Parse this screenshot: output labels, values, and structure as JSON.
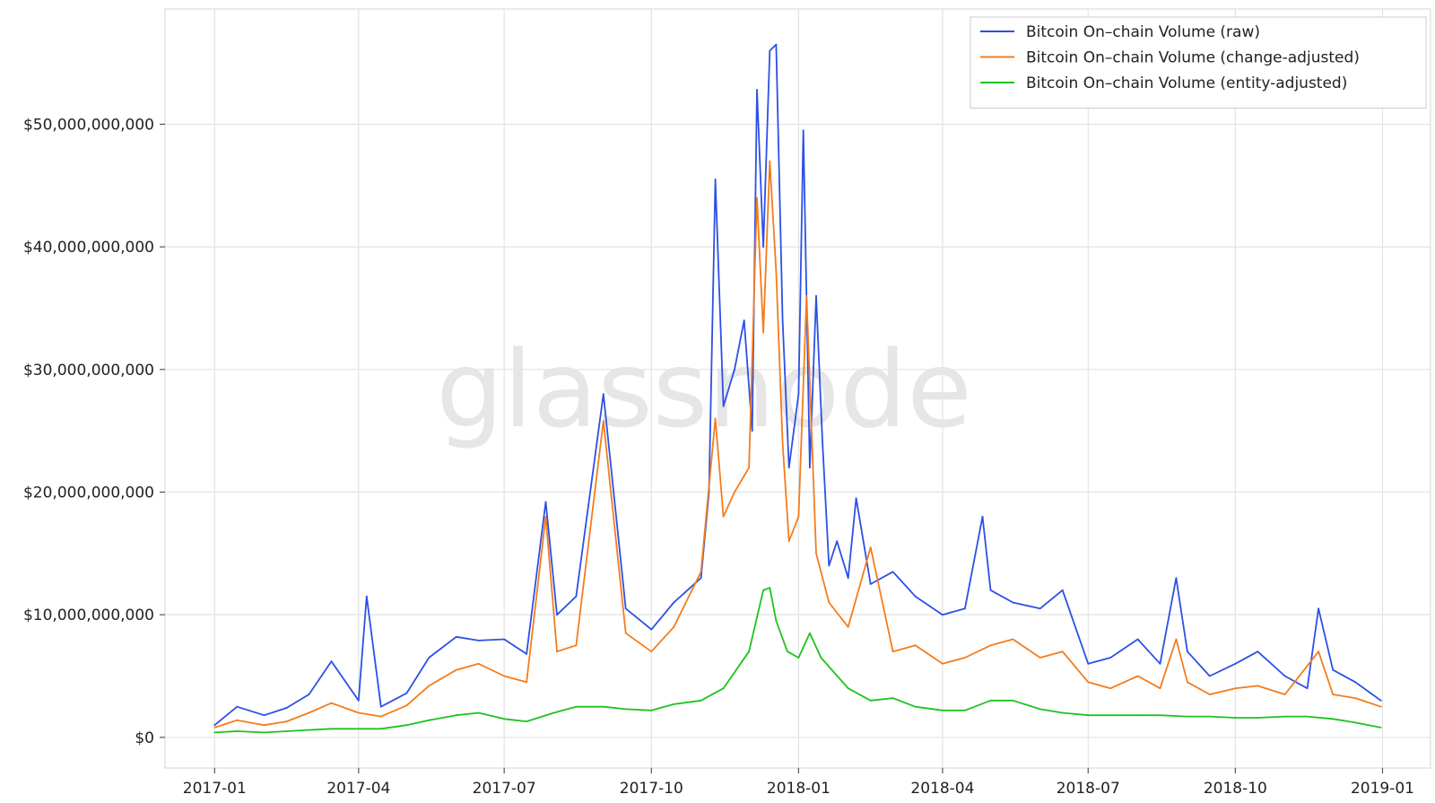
{
  "watermark": "glassnode",
  "chart_data": {
    "type": "line",
    "title": "",
    "xlabel": "",
    "ylabel": "",
    "x_ticks": [
      "2017-01",
      "2017-04",
      "2017-07",
      "2017-10",
      "2018-01",
      "2018-04",
      "2018-07",
      "2018-10",
      "2019-01"
    ],
    "x_range": [
      "2016-12-01",
      "2019-01-31"
    ],
    "y_ticks": [
      0,
      10000000000,
      20000000000,
      30000000000,
      40000000000,
      50000000000
    ],
    "y_tick_labels": [
      "$0",
      "$10,000,000,000",
      "$20,000,000,000",
      "$30,000,000,000",
      "$40,000,000,000",
      "$50,000,000,000"
    ],
    "ylim": [
      -2500000000,
      59400000000
    ],
    "grid": true,
    "legend_position": "top-right",
    "series": [
      {
        "name": "Bitcoin On–chain Volume (raw)",
        "color": "#2c50e6",
        "x": [
          "2017-01-01",
          "2017-01-15",
          "2017-02-01",
          "2017-02-15",
          "2017-03-01",
          "2017-03-15",
          "2017-04-01",
          "2017-04-06",
          "2017-04-15",
          "2017-05-01",
          "2017-05-15",
          "2017-06-01",
          "2017-06-15",
          "2017-07-01",
          "2017-07-15",
          "2017-07-27",
          "2017-08-03",
          "2017-08-15",
          "2017-09-01",
          "2017-09-15",
          "2017-10-01",
          "2017-10-15",
          "2017-11-01",
          "2017-11-06",
          "2017-11-10",
          "2017-11-15",
          "2017-11-22",
          "2017-11-28",
          "2017-12-03",
          "2017-12-06",
          "2017-12-10",
          "2017-12-14",
          "2017-12-18",
          "2017-12-22",
          "2017-12-26",
          "2018-01-01",
          "2018-01-04",
          "2018-01-08",
          "2018-01-12",
          "2018-01-16",
          "2018-01-20",
          "2018-01-25",
          "2018-02-01",
          "2018-02-06",
          "2018-02-15",
          "2018-03-01",
          "2018-03-15",
          "2018-04-01",
          "2018-04-15",
          "2018-04-26",
          "2018-05-01",
          "2018-05-15",
          "2018-06-01",
          "2018-06-15",
          "2018-07-01",
          "2018-07-15",
          "2018-08-01",
          "2018-08-15",
          "2018-08-25",
          "2018-09-01",
          "2018-09-15",
          "2018-10-01",
          "2018-10-15",
          "2018-11-01",
          "2018-11-15",
          "2018-11-22",
          "2018-12-01",
          "2018-12-15",
          "2018-12-31"
        ],
        "y": [
          1000000000,
          2500000000,
          1800000000,
          2400000000,
          3500000000,
          6200000000,
          3000000000,
          11500000000,
          2500000000,
          3600000000,
          6500000000,
          8200000000,
          7900000000,
          8000000000,
          6800000000,
          19200000000,
          10000000000,
          11500000000,
          28000000000,
          10500000000,
          8800000000,
          11000000000,
          13000000000,
          20000000000,
          45500000000,
          27000000000,
          30000000000,
          34000000000,
          25000000000,
          52800000000,
          40000000000,
          56000000000,
          56500000000,
          34000000000,
          22000000000,
          28000000000,
          49500000000,
          22000000000,
          36000000000,
          24000000000,
          14000000000,
          16000000000,
          13000000000,
          19500000000,
          12500000000,
          13500000000,
          11500000000,
          10000000000,
          10500000000,
          18000000000,
          12000000000,
          11000000000,
          10500000000,
          12000000000,
          6000000000,
          6500000000,
          8000000000,
          6000000000,
          13000000000,
          7000000000,
          5000000000,
          6000000000,
          7000000000,
          5000000000,
          4000000000,
          10500000000,
          5500000000,
          4500000000,
          3000000000
        ]
      },
      {
        "name": "Bitcoin On–chain Volume (change-adjusted)",
        "color": "#f47c1c",
        "x": [
          "2017-01-01",
          "2017-01-15",
          "2017-02-01",
          "2017-02-15",
          "2017-03-01",
          "2017-03-15",
          "2017-04-01",
          "2017-04-15",
          "2017-05-01",
          "2017-05-15",
          "2017-06-01",
          "2017-06-15",
          "2017-07-01",
          "2017-07-15",
          "2017-07-27",
          "2017-08-03",
          "2017-08-15",
          "2017-09-01",
          "2017-09-15",
          "2017-10-01",
          "2017-10-15",
          "2017-11-01",
          "2017-11-10",
          "2017-11-15",
          "2017-11-22",
          "2017-12-01",
          "2017-12-06",
          "2017-12-10",
          "2017-12-14",
          "2017-12-18",
          "2017-12-22",
          "2017-12-26",
          "2018-01-01",
          "2018-01-06",
          "2018-01-12",
          "2018-01-20",
          "2018-02-01",
          "2018-02-15",
          "2018-03-01",
          "2018-03-15",
          "2018-04-01",
          "2018-04-15",
          "2018-05-01",
          "2018-05-15",
          "2018-06-01",
          "2018-06-15",
          "2018-07-01",
          "2018-07-15",
          "2018-08-01",
          "2018-08-15",
          "2018-08-25",
          "2018-09-01",
          "2018-09-15",
          "2018-10-01",
          "2018-10-15",
          "2018-11-01",
          "2018-11-22",
          "2018-12-01",
          "2018-12-15",
          "2018-12-31"
        ],
        "y": [
          800000000,
          1400000000,
          1000000000,
          1300000000,
          2000000000,
          2800000000,
          2000000000,
          1700000000,
          2600000000,
          4200000000,
          5500000000,
          6000000000,
          5000000000,
          4500000000,
          18000000000,
          7000000000,
          7500000000,
          25800000000,
          8500000000,
          7000000000,
          9000000000,
          13500000000,
          26000000000,
          18000000000,
          20000000000,
          22000000000,
          44000000000,
          33000000000,
          47000000000,
          38000000000,
          24000000000,
          16000000000,
          18000000000,
          36000000000,
          15000000000,
          11000000000,
          9000000000,
          15500000000,
          7000000000,
          7500000000,
          6000000000,
          6500000000,
          7500000000,
          8000000000,
          6500000000,
          7000000000,
          4500000000,
          4000000000,
          5000000000,
          4000000000,
          8000000000,
          4500000000,
          3500000000,
          4000000000,
          4200000000,
          3500000000,
          7000000000,
          3500000000,
          3200000000,
          2500000000
        ]
      },
      {
        "name": "Bitcoin On–chain Volume (entity-adjusted)",
        "color": "#1fc21f",
        "x": [
          "2017-01-01",
          "2017-01-15",
          "2017-02-01",
          "2017-02-15",
          "2017-03-01",
          "2017-03-15",
          "2017-04-01",
          "2017-04-15",
          "2017-05-01",
          "2017-05-15",
          "2017-06-01",
          "2017-06-15",
          "2017-07-01",
          "2017-07-15",
          "2017-08-01",
          "2017-08-15",
          "2017-09-01",
          "2017-09-15",
          "2017-10-01",
          "2017-10-15",
          "2017-11-01",
          "2017-11-15",
          "2017-12-01",
          "2017-12-10",
          "2017-12-14",
          "2017-12-18",
          "2017-12-25",
          "2018-01-01",
          "2018-01-08",
          "2018-01-15",
          "2018-02-01",
          "2018-02-15",
          "2018-03-01",
          "2018-03-15",
          "2018-04-01",
          "2018-04-15",
          "2018-05-01",
          "2018-05-15",
          "2018-06-01",
          "2018-06-15",
          "2018-07-01",
          "2018-07-15",
          "2018-08-01",
          "2018-08-15",
          "2018-09-01",
          "2018-09-15",
          "2018-10-01",
          "2018-10-15",
          "2018-11-01",
          "2018-11-15",
          "2018-12-01",
          "2018-12-15",
          "2018-12-31"
        ],
        "y": [
          400000000,
          500000000,
          400000000,
          500000000,
          600000000,
          700000000,
          700000000,
          700000000,
          1000000000,
          1400000000,
          1800000000,
          2000000000,
          1500000000,
          1300000000,
          2000000000,
          2500000000,
          2500000000,
          2300000000,
          2200000000,
          2700000000,
          3000000000,
          4000000000,
          7000000000,
          12000000000,
          12200000000,
          9500000000,
          7000000000,
          6500000000,
          8500000000,
          6500000000,
          4000000000,
          3000000000,
          3200000000,
          2500000000,
          2200000000,
          2200000000,
          3000000000,
          3000000000,
          2300000000,
          2000000000,
          1800000000,
          1800000000,
          1800000000,
          1800000000,
          1700000000,
          1700000000,
          1600000000,
          1600000000,
          1700000000,
          1700000000,
          1500000000,
          1200000000,
          800000000
        ]
      }
    ]
  }
}
